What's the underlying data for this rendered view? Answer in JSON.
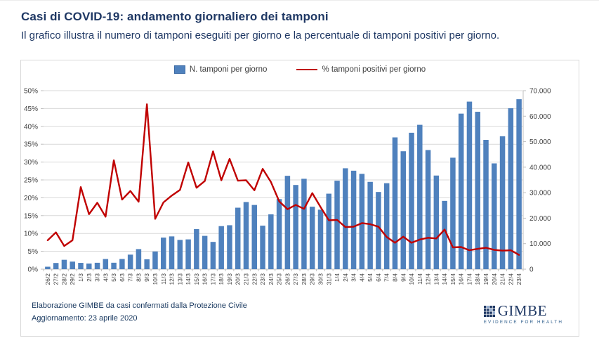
{
  "header": {
    "title": "Casi di COVID-19: andamento giornaliero dei tamponi",
    "subtitle": "Il grafico illustra il numero di tamponi eseguiti per giorno e la percentuale di tamponi positivi per giorno."
  },
  "chart_data": {
    "type": "bar",
    "subtype": "combo-bar-line-two-axes",
    "categories": [
      "26/2",
      "27/2",
      "28/2",
      "29/2",
      "1/3",
      "2/3",
      "3/3",
      "4/3",
      "5/3",
      "6/3",
      "7/3",
      "8/3",
      "9/3",
      "10/3",
      "11/3",
      "12/3",
      "13/3",
      "14/3",
      "15/3",
      "16/3",
      "17/3",
      "18/3",
      "19/3",
      "20/3",
      "21/3",
      "22/3",
      "23/3",
      "24/3",
      "25/3",
      "26/3",
      "27/3",
      "28/3",
      "29/3",
      "30/3",
      "31/3",
      "1/4",
      "2/4",
      "3/4",
      "4/4",
      "5/4",
      "6/4",
      "7/4",
      "8/4",
      "9/4",
      "10/4",
      "11/4",
      "12/4",
      "13/4",
      "14/4",
      "15/4",
      "16/4",
      "17/4",
      "18/4",
      "19/4",
      "20/4",
      "21/4",
      "22/4",
      "23/4"
    ],
    "series": [
      {
        "name": "N. tamponi per giorno",
        "type": "bar",
        "axis": "right",
        "color": "#4F81BD",
        "values": [
          964,
          2427,
          3681,
          2966,
          2466,
          2218,
          2511,
          3981,
          2525,
          3997,
          5703,
          7875,
          3889,
          6935,
          12393,
          12857,
          11477,
          11682,
          15729,
          13063,
          10695,
          16884,
          17236,
          24109,
          26336,
          25180,
          17066,
          21496,
          27481,
          36615,
          33019,
          35447,
          24504,
          23329,
          29609,
          34694,
          39570,
          38617,
          37375,
          34237,
          30271,
          33713,
          51680,
          46244,
          53495,
          56609,
          46720,
          36717,
          26779,
          43715,
          60999,
          65705,
          61725,
          50708,
          41483,
          52126,
          63101,
          66658
        ]
      },
      {
        "name": "% tamponi positivi per giorno",
        "type": "line",
        "axis": "left",
        "color": "#C00000",
        "values": [
          8.1,
          10.3,
          6.5,
          8.1,
          23.0,
          15.4,
          18.6,
          14.7,
          30.5,
          19.5,
          21.9,
          18.9,
          46.2,
          14.1,
          18.7,
          20.6,
          22.2,
          29.9,
          22.8,
          24.7,
          33.0,
          24.9,
          30.9,
          24.8,
          24.9,
          22.1,
          28.1,
          24.4,
          19.0,
          16.8,
          18.0,
          16.9,
          21.3,
          17.4,
          13.7,
          13.8,
          11.8,
          11.9,
          12.9,
          12.6,
          11.9,
          9.0,
          7.4,
          9.1,
          7.4,
          8.3,
          8.8,
          8.6,
          11.1,
          6.1,
          6.2,
          5.3,
          5.7,
          6.0,
          5.4,
          5.2,
          5.3,
          4.0
        ]
      }
    ],
    "left_axis": {
      "min": 0,
      "max": 50,
      "unit": "%",
      "ticks": [
        "0%",
        "5%",
        "10%",
        "15%",
        "20%",
        "25%",
        "30%",
        "35%",
        "40%",
        "45%",
        "50%"
      ]
    },
    "right_axis": {
      "min": 0,
      "max": 70000,
      "ticks": [
        "0",
        "10.000",
        "20.000",
        "30.000",
        "40.000",
        "50.000",
        "60.000",
        "70.000"
      ]
    },
    "grid": true,
    "legend_position": "top",
    "title": "",
    "xlabel": "",
    "ylabel": ""
  },
  "footer": {
    "source": "Elaborazione GIMBE da casi confermati dalla Protezione Civile",
    "updated": "Aggiornamento: 23 aprile 2020"
  },
  "logo": {
    "name": "GIMBE",
    "tagline": "EVIDENCE FOR HEALTH"
  },
  "colors": {
    "bar": "#4F81BD",
    "line": "#C00000",
    "grid": "#D9D9D9",
    "axis_line": "#BFBFBF",
    "axis_text": "#404040",
    "title_text": "#1F3864"
  }
}
